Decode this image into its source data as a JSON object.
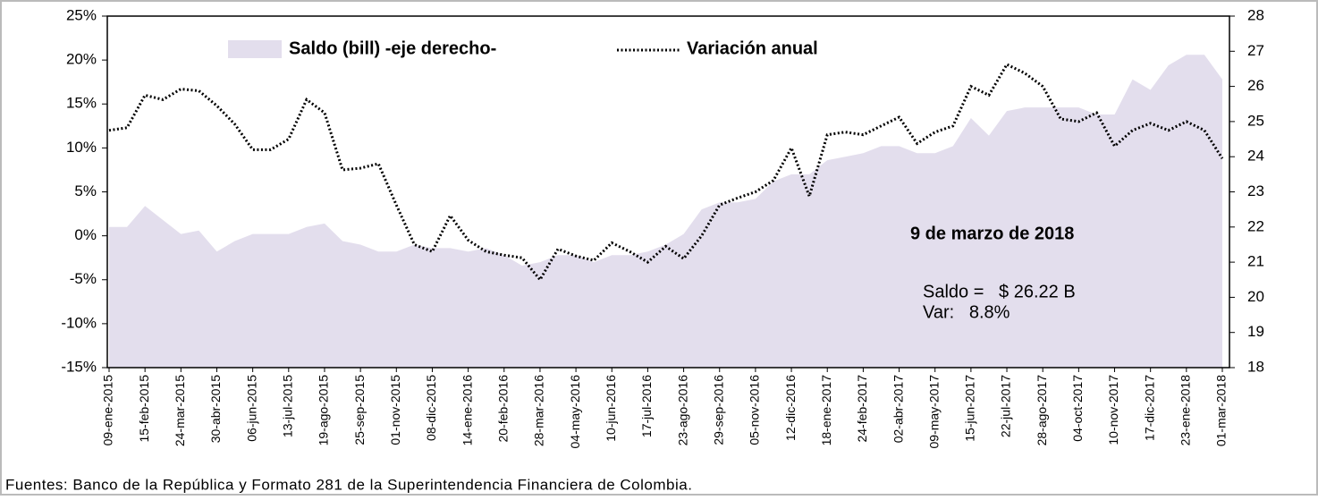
{
  "chart_data": {
    "type": "area-line",
    "categories": [
      "09-ene-2015",
      null,
      "15-feb-2015",
      null,
      "24-mar-2015",
      null,
      "30-abr-2015",
      null,
      "06-jun-2015",
      null,
      "13-jul-2015",
      null,
      "19-ago-2015",
      null,
      "25-sep-2015",
      null,
      "01-nov-2015",
      null,
      "08-dic-2015",
      null,
      "14-ene-2016",
      null,
      "20-feb-2016",
      null,
      "28-mar-2016",
      null,
      "04-may-2016",
      null,
      "10-jun-2016",
      null,
      "17-jul-2016",
      null,
      "23-ago-2016",
      null,
      "29-sep-2016",
      null,
      "05-nov-2016",
      null,
      "12-dic-2016",
      null,
      "18-ene-2017",
      null,
      "24-feb-2017",
      null,
      "02-abr-2017",
      null,
      "09-may-2017",
      null,
      "15-jun-2017",
      null,
      "22-jul-2017",
      null,
      "28-ago-2017",
      null,
      "04-oct-2017",
      null,
      "10-nov-2017",
      null,
      "17-dic-2017",
      null,
      "23-ene-2018",
      null,
      "01-mar-2018"
    ],
    "series": [
      {
        "name": "Saldo (bill) -eje derecho-",
        "kind": "area",
        "axis": "y2",
        "color": "#e3deed",
        "values": [
          22.0,
          22.0,
          22.6,
          22.2,
          21.8,
          21.9,
          21.3,
          21.6,
          21.8,
          21.8,
          21.8,
          22.0,
          22.1,
          21.6,
          21.5,
          21.3,
          21.3,
          21.5,
          21.4,
          21.4,
          21.3,
          21.4,
          21.2,
          20.9,
          21.0,
          21.2,
          21.2,
          21.0,
          21.2,
          21.2,
          21.3,
          21.5,
          21.8,
          22.5,
          22.7,
          22.7,
          22.8,
          23.3,
          23.5,
          23.5,
          23.9,
          24.0,
          24.1,
          24.3,
          24.3,
          24.1,
          24.1,
          24.3,
          25.1,
          24.6,
          25.3,
          25.4,
          25.4,
          25.4,
          25.4,
          25.2,
          25.2,
          26.2,
          25.9,
          26.6,
          26.9,
          26.9,
          26.2
        ]
      },
      {
        "name": "Variación anual",
        "kind": "dotted-line",
        "axis": "y",
        "color": "#000000",
        "values": [
          12.0,
          12.3,
          16,
          15.5,
          16.7,
          16.5,
          14.8,
          12.7,
          9.8,
          9.8,
          11,
          15.5,
          14,
          7.5,
          7.7,
          8.2,
          3.5,
          -1,
          -1.8,
          2.3,
          -0.5,
          -1.8,
          -2.2,
          -2.5,
          -5,
          -1.5,
          -2.3,
          -2.8,
          -0.8,
          -1.8,
          -3,
          -1.2,
          -2.6,
          0,
          3.5,
          4.3,
          5,
          6.3,
          10,
          4.5,
          11.5,
          11.8,
          11.5,
          12.5,
          13.5,
          10.5,
          11.8,
          12.5,
          17,
          16,
          19.5,
          18.5,
          17,
          13.3,
          13,
          14,
          10.2,
          12,
          12.8,
          12,
          13,
          12,
          8.8
        ]
      }
    ],
    "ylim": [
      -15,
      25
    ],
    "yticks": [
      {
        "value": -15,
        "label": "-15%"
      },
      {
        "value": -10,
        "label": "-10%"
      },
      {
        "value": -5,
        "label": "-5%"
      },
      {
        "value": 0,
        "label": "0%"
      },
      {
        "value": 5,
        "label": "5%"
      },
      {
        "value": 10,
        "label": "10%"
      },
      {
        "value": 15,
        "label": "15%"
      },
      {
        "value": 20,
        "label": "20%"
      },
      {
        "value": 25,
        "label": "25%"
      }
    ],
    "y2lim": [
      18,
      28
    ],
    "y2ticks": [
      18,
      19,
      20,
      21,
      22,
      23,
      24,
      25,
      26,
      27,
      28
    ],
    "legend": "top",
    "annotations": [
      "9 de marzo de 2018",
      "Saldo =   $ 26.22 B",
      "Var:   8.8%"
    ],
    "source": "Fuentes: Banco de la República y Formato 281 de la Superintendencia Financiera de Colombia."
  }
}
